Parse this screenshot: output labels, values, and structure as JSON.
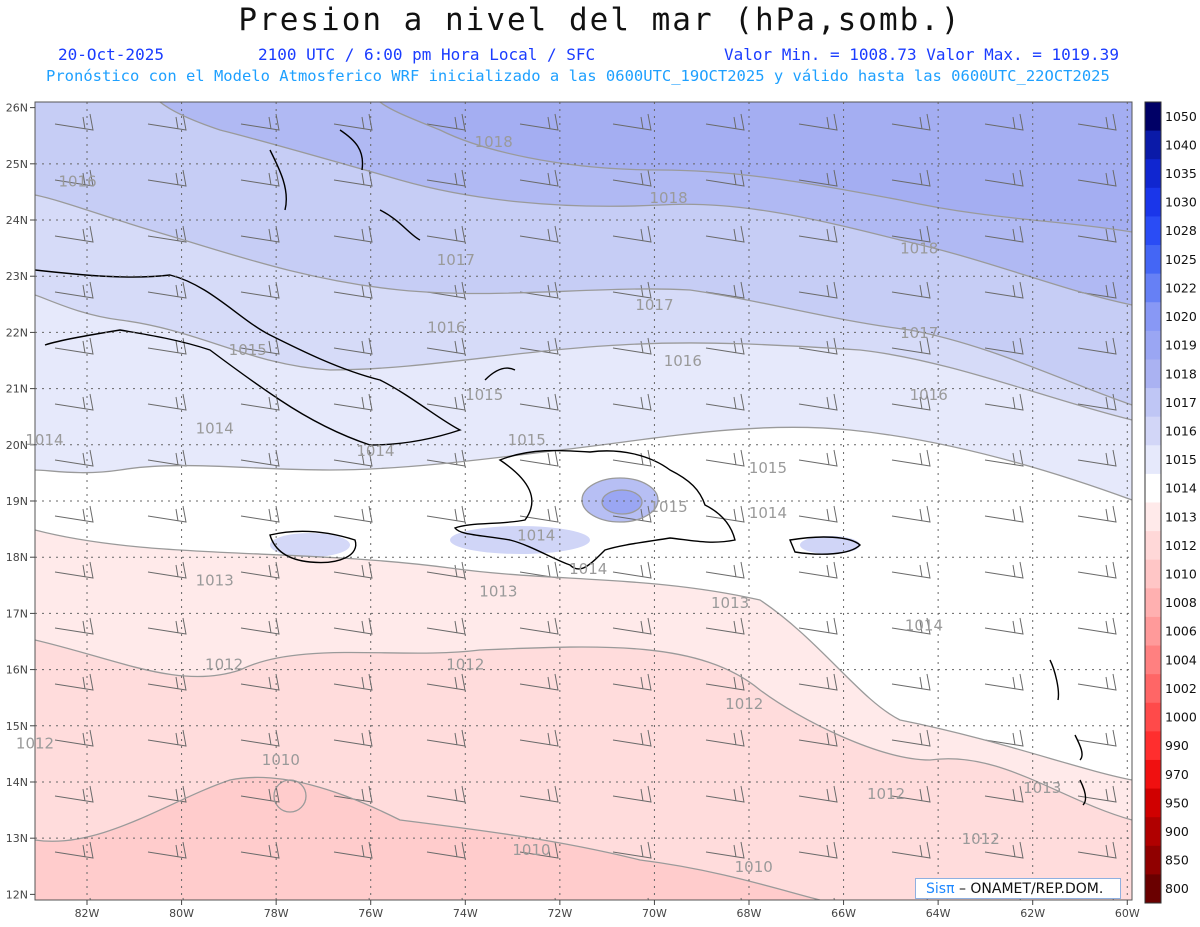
{
  "title": "Presion a nivel del mar (hPa,somb.)",
  "header": {
    "date": "20-Oct-2025",
    "time": "2100 UTC / 6:00 pm Hora Local / SFC",
    "minmax": "Valor Min. = 1008.73  Valor Max. = 1019.39",
    "model": "Pronóstico con el Modelo Atmosferico WRF inicializado a las 0600UTC_19OCT2025 y válido hasta las  0600UTC_22OCT2025"
  },
  "axes": {
    "lat_labels": [
      "26N",
      "25N",
      "24N",
      "23N",
      "22N",
      "21N",
      "20N",
      "19N",
      "18N",
      "17N",
      "16N",
      "15N",
      "14N",
      "13N",
      "12N"
    ],
    "lon_labels": [
      "82W",
      "80W",
      "78W",
      "76W",
      "74W",
      "72W",
      "70W",
      "68W",
      "66W",
      "64W",
      "62W",
      "60W"
    ]
  },
  "contour_labels": [
    {
      "text": "1018",
      "lat": 25.3,
      "lon": -73.4
    },
    {
      "text": "1018",
      "lat": 24.3,
      "lon": -69.7
    },
    {
      "text": "1018",
      "lat": 23.4,
      "lon": -64.4
    },
    {
      "text": "1017",
      "lat": 22.4,
      "lon": -70.0
    },
    {
      "text": "1017",
      "lat": 21.9,
      "lon": -64.4
    },
    {
      "text": "1017",
      "lat": 23.2,
      "lon": -74.2
    },
    {
      "text": "1016",
      "lat": 22.0,
      "lon": -74.4
    },
    {
      "text": "1016",
      "lat": 21.4,
      "lon": -69.4
    },
    {
      "text": "1016",
      "lat": 20.8,
      "lon": -64.2
    },
    {
      "text": "1016",
      "lat": 24.6,
      "lon": -82.2
    },
    {
      "text": "1015",
      "lat": 21.6,
      "lon": -78.6
    },
    {
      "text": "1015",
      "lat": 20.8,
      "lon": -73.6
    },
    {
      "text": "1015",
      "lat": 20.0,
      "lon": -72.7
    },
    {
      "text": "1015",
      "lat": 19.5,
      "lon": -67.6
    },
    {
      "text": "1015",
      "lat": 18.8,
      "lon": -69.7
    },
    {
      "text": "1014",
      "lat": 20.0,
      "lon": -82.9
    },
    {
      "text": "1014",
      "lat": 20.2,
      "lon": -79.3
    },
    {
      "text": "1014",
      "lat": 19.8,
      "lon": -75.9
    },
    {
      "text": "1014",
      "lat": 18.3,
      "lon": -72.5
    },
    {
      "text": "1014",
      "lat": 18.7,
      "lon": -67.6
    },
    {
      "text": "1014",
      "lat": 16.7,
      "lon": -64.3
    },
    {
      "text": "1014",
      "lat": 17.7,
      "lon": -71.4
    },
    {
      "text": "1013",
      "lat": 17.5,
      "lon": -79.3
    },
    {
      "text": "1013",
      "lat": 17.3,
      "lon": -73.3
    },
    {
      "text": "1013",
      "lat": 17.1,
      "lon": -68.4
    },
    {
      "text": "1013",
      "lat": 13.8,
      "lon": -61.8
    },
    {
      "text": "1012",
      "lat": 16.0,
      "lon": -79.1
    },
    {
      "text": "1012",
      "lat": 16.0,
      "lon": -74.0
    },
    {
      "text": "1012",
      "lat": 14.6,
      "lon": -83.1
    },
    {
      "text": "1012",
      "lat": 15.3,
      "lon": -68.1
    },
    {
      "text": "1012",
      "lat": 13.7,
      "lon": -65.1
    },
    {
      "text": "1012",
      "lat": 12.9,
      "lon": -63.1
    },
    {
      "text": "1010",
      "lat": 14.3,
      "lon": -77.9
    },
    {
      "text": "1010",
      "lat": 12.7,
      "lon": -72.6
    },
    {
      "text": "1010",
      "lat": 12.4,
      "lon": -67.9
    }
  ],
  "colorbar": {
    "labels": [
      "1050",
      "1040",
      "1035",
      "1030",
      "1028",
      "1025",
      "1022",
      "1020",
      "1019",
      "1018",
      "1017",
      "1016",
      "1015",
      "1014",
      "1013",
      "1012",
      "1010",
      "1008",
      "1006",
      "1004",
      "1002",
      "1000",
      "990",
      "970",
      "950",
      "900",
      "850",
      "800"
    ],
    "colors": [
      "#000066",
      "#0a1aa8",
      "#1026d0",
      "#1a36ea",
      "#2a4cf5",
      "#4466f5",
      "#6680f5",
      "#8898f5",
      "#9aa6f3",
      "#aab2f2",
      "#bfc6f5",
      "#d2d6f7",
      "#e6e9fb",
      "#ffffff",
      "#ffeaea",
      "#ffd8d8",
      "#ffc6c6",
      "#ffb0b0",
      "#ff9a9a",
      "#ff8080",
      "#ff6666",
      "#ff4a4a",
      "#ff2e2e",
      "#f01010",
      "#d00000",
      "#b00000",
      "#900000",
      "#6a0000"
    ]
  },
  "credit": {
    "logo": "Sisπ",
    "org": " – ONAMET/REP.DOM."
  }
}
